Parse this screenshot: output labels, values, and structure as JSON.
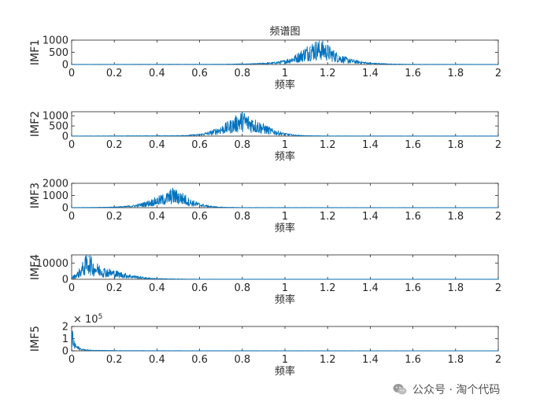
{
  "chart_data": [
    {
      "type": "line",
      "title": "频谱图",
      "xlabel": "频率",
      "ylabel": "IMF1",
      "xlim": [
        0,
        2
      ],
      "ylim": [
        0,
        1000
      ],
      "xticks": [
        "0",
        "0.2",
        "0.4",
        "0.6",
        "0.8",
        "1",
        "1.2",
        "1.4",
        "1.6",
        "1.8",
        "2"
      ],
      "yticks": [
        "0",
        "500",
        "1000"
      ],
      "exponent": "",
      "series": [
        {
          "x": [
            0,
            0.7,
            0.85,
            0.95,
            1.0,
            1.05,
            1.1,
            1.12,
            1.15,
            1.18,
            1.2,
            1.25,
            1.3,
            1.35,
            1.4,
            1.5,
            1.6,
            2.0
          ],
          "values": [
            5,
            10,
            30,
            80,
            150,
            320,
            600,
            720,
            780,
            760,
            650,
            350,
            200,
            120,
            60,
            20,
            8,
            5
          ]
        }
      ]
    },
    {
      "type": "line",
      "title": "",
      "xlabel": "频率",
      "ylabel": "IMF2",
      "xlim": [
        0,
        2
      ],
      "ylim": [
        0,
        1200
      ],
      "xticks": [
        "0",
        "0.2",
        "0.4",
        "0.6",
        "0.8",
        "1",
        "1.2",
        "1.4",
        "1.6",
        "1.8",
        "2"
      ],
      "yticks": [
        "0",
        "500",
        "1000"
      ],
      "exponent": "",
      "series": [
        {
          "x": [
            0,
            0.5,
            0.6,
            0.65,
            0.7,
            0.75,
            0.78,
            0.8,
            0.82,
            0.85,
            0.9,
            0.95,
            1.0,
            1.05,
            1.1,
            1.2,
            2.0
          ],
          "values": [
            5,
            20,
            80,
            200,
            400,
            650,
            850,
            1000,
            880,
            720,
            480,
            250,
            120,
            50,
            20,
            8,
            5
          ]
        }
      ]
    },
    {
      "type": "line",
      "title": "",
      "xlabel": "频率",
      "ylabel": "IMF3",
      "xlim": [
        0,
        2
      ],
      "ylim": [
        0,
        2000
      ],
      "xticks": [
        "0",
        "0.2",
        "0.4",
        "0.6",
        "0.8",
        "1",
        "1.2",
        "1.4",
        "1.6",
        "1.8",
        "2"
      ],
      "yticks": [
        "0",
        "1000",
        "2000"
      ],
      "exponent": "",
      "series": [
        {
          "x": [
            0,
            0.15,
            0.25,
            0.3,
            0.35,
            0.4,
            0.45,
            0.47,
            0.5,
            0.53,
            0.55,
            0.6,
            0.65,
            0.7,
            0.8,
            2.0
          ],
          "values": [
            10,
            30,
            100,
            200,
            400,
            700,
            1000,
            1300,
            1100,
            900,
            600,
            300,
            120,
            40,
            10,
            5
          ]
        }
      ]
    },
    {
      "type": "line",
      "title": "",
      "xlabel": "频率",
      "ylabel": "IMF4",
      "xlim": [
        0,
        2
      ],
      "ylim": [
        0,
        15000
      ],
      "xticks": [
        "0",
        "0.2",
        "0.4",
        "0.6",
        "0.8",
        "1",
        "1.2",
        "1.4",
        "1.6",
        "1.8",
        "2"
      ],
      "yticks": [
        "0",
        "10000"
      ],
      "exponent": "",
      "series": [
        {
          "x": [
            0,
            0.03,
            0.05,
            0.07,
            0.08,
            0.1,
            0.15,
            0.2,
            0.25,
            0.3,
            0.35,
            0.4,
            0.5,
            0.6,
            2.0
          ],
          "values": [
            1000,
            4000,
            8000,
            12000,
            14000,
            9000,
            6000,
            4500,
            3000,
            1800,
            900,
            400,
            150,
            50,
            20
          ]
        }
      ]
    },
    {
      "type": "line",
      "title": "",
      "xlabel": "频率",
      "ylabel": "IMF5",
      "xlim": [
        0,
        2
      ],
      "ylim": [
        0,
        2
      ],
      "xticks": [
        "0",
        "0.2",
        "0.4",
        "0.6",
        "0.8",
        "1",
        "1.2",
        "1.4",
        "1.6",
        "1.8",
        "2"
      ],
      "yticks": [
        "0",
        "1",
        "2"
      ],
      "exponent": "× 10^5",
      "series": [
        {
          "x": [
            0,
            0.004,
            0.008,
            0.012,
            0.02,
            0.03,
            0.04,
            0.06,
            0.1,
            0.2,
            0.5,
            2.0
          ],
          "values": [
            0.3,
            1.6,
            0.9,
            0.6,
            0.45,
            0.3,
            0.2,
            0.1,
            0.05,
            0.02,
            0.01,
            0.005
          ]
        }
      ]
    }
  ],
  "colors": {
    "series": "#0072BD",
    "axis": "#262626"
  },
  "watermark": {
    "text": "公众号 · 淘个代码",
    "icon": "wechat-icon"
  }
}
